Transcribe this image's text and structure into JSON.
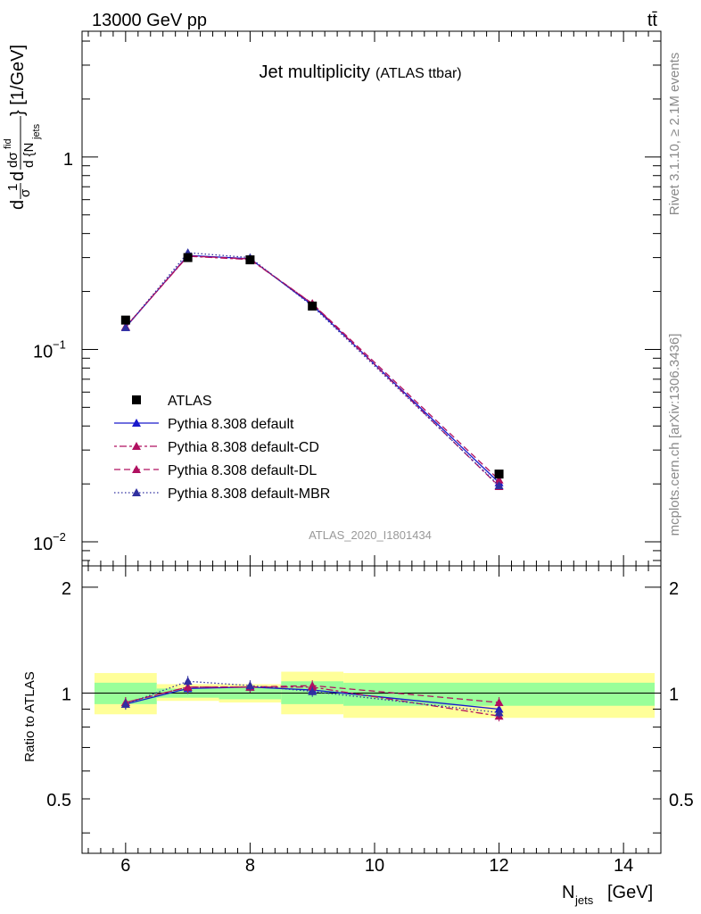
{
  "header": {
    "left": "13000 GeV pp",
    "right": "tt̄"
  },
  "side": {
    "rivet": "Rivet 3.1.10, ≥ 2.1M events",
    "mcplots": "mcplots.cern.ch [arXiv:1306.3436]"
  },
  "chart_data": {
    "type": "line",
    "title": "Jet multiplicity",
    "subtitle": "(ATLAS ttbar)",
    "watermark": "ATLAS_2020_I1801434",
    "xlabel_main": "N",
    "xlabel_sub": "jets",
    "xlabel_unit": "[GeV]",
    "ylabel": "dσ/dN_jets normalized [1/GeV]",
    "ratio_ylabel": "Ratio to ATLAS",
    "xlim": [
      5.3,
      14.6
    ],
    "ylim": [
      0.0075,
      4.5
    ],
    "yscale": "log",
    "ratio_ylim": [
      0.35,
      2.3
    ],
    "x_ticks": [
      6,
      8,
      10,
      12,
      14
    ],
    "y_tick_labels": [
      {
        "value": 1,
        "label": "1",
        "exp": ""
      },
      {
        "value": 0.1,
        "label": "10",
        "exp": "−1"
      },
      {
        "value": 0.01,
        "label": "10",
        "exp": "−2"
      }
    ],
    "ratio_tick_labels": [
      {
        "value": 2,
        "label": "2"
      },
      {
        "value": 1,
        "label": "1"
      },
      {
        "value": 0.5,
        "label": "0.5"
      }
    ],
    "data": {
      "name": "ATLAS",
      "x": [
        6,
        7,
        8,
        9,
        12
      ],
      "y": [
        0.142,
        0.3,
        0.292,
        0.168,
        0.0225
      ],
      "color": "#000000"
    },
    "bands": [
      {
        "x0": 5.5,
        "x1": 6.5,
        "inner": [
          0.93,
          1.07
        ],
        "outer": [
          0.87,
          1.14
        ]
      },
      {
        "x0": 6.5,
        "x1": 7.5,
        "inner": [
          0.97,
          1.03
        ],
        "outer": [
          0.95,
          1.06
        ]
      },
      {
        "x0": 7.5,
        "x1": 8.5,
        "inner": [
          0.96,
          1.04
        ],
        "outer": [
          0.94,
          1.06
        ]
      },
      {
        "x0": 8.5,
        "x1": 9.5,
        "inner": [
          0.93,
          1.08
        ],
        "outer": [
          0.87,
          1.15
        ]
      },
      {
        "x0": 9.5,
        "x1": 14.5,
        "inner": [
          0.92,
          1.07
        ],
        "outer": [
          0.85,
          1.14
        ]
      }
    ],
    "series": [
      {
        "name": "Pythia 8.308 default",
        "color": "#1a1acc",
        "dash": "",
        "x": [
          6,
          7,
          8,
          9,
          12
        ],
        "y": [
          0.13,
          0.308,
          0.296,
          0.17,
          0.0203
        ],
        "ratio": [
          0.93,
          1.03,
          1.04,
          1.02,
          0.9
        ]
      },
      {
        "name": "Pythia 8.308 default-CD",
        "color": "#b01060",
        "dash": "3,3,8,3",
        "x": [
          6,
          7,
          8,
          9,
          12
        ],
        "y": [
          0.131,
          0.305,
          0.293,
          0.173,
          0.0194
        ],
        "ratio": [
          0.94,
          1.04,
          1.04,
          1.04,
          0.86
        ]
      },
      {
        "name": "Pythia 8.308 default-DL",
        "color": "#b01060",
        "dash": "7,4",
        "x": [
          6,
          7,
          8,
          9,
          12
        ],
        "y": [
          0.131,
          0.306,
          0.295,
          0.173,
          0.021
        ],
        "ratio": [
          0.94,
          1.04,
          1.04,
          1.05,
          0.94
        ]
      },
      {
        "name": "Pythia 8.308 default-MBR",
        "color": "#3030a0",
        "dash": "1.5,2.5",
        "x": [
          6,
          7,
          8,
          9,
          12
        ],
        "y": [
          0.13,
          0.318,
          0.3,
          0.168,
          0.0196
        ],
        "ratio": [
          0.93,
          1.08,
          1.05,
          1.01,
          0.88
        ]
      }
    ],
    "colors": {
      "inner_band": "#99ff99",
      "outer_band": "#ffff99"
    }
  }
}
